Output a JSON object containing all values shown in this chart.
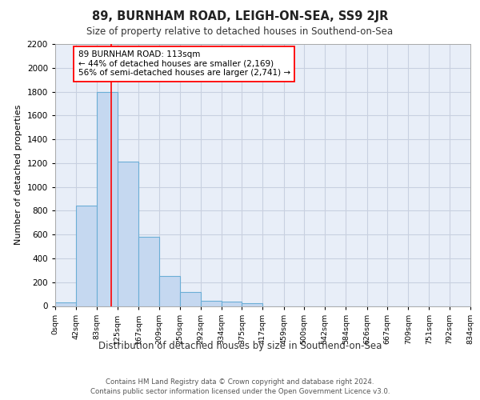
{
  "title": "89, BURNHAM ROAD, LEIGH-ON-SEA, SS9 2JR",
  "subtitle": "Size of property relative to detached houses in Southend-on-Sea",
  "xlabel": "Distribution of detached houses by size in Southend-on-Sea",
  "ylabel": "Number of detached properties",
  "footer_line1": "Contains HM Land Registry data © Crown copyright and database right 2024.",
  "footer_line2": "Contains public sector information licensed under the Open Government Licence v3.0.",
  "bar_edges": [
    0,
    42,
    83,
    125,
    167,
    209,
    250,
    292,
    334,
    375,
    417,
    459,
    500,
    542,
    584,
    626,
    667,
    709,
    751,
    792,
    834
  ],
  "bar_heights": [
    30,
    840,
    1800,
    1210,
    580,
    255,
    115,
    45,
    35,
    25,
    0,
    0,
    0,
    0,
    0,
    0,
    0,
    0,
    0,
    0
  ],
  "bar_color": "#c5d8f0",
  "bar_edgecolor": "#6baed6",
  "grid_color": "#c8d0e0",
  "bg_color": "#e8eef8",
  "redline_x": 113,
  "annotation_line1": "89 BURNHAM ROAD: 113sqm",
  "annotation_line2": "← 44% of detached houses are smaller (2,169)",
  "annotation_line3": "56% of semi-detached houses are larger (2,741) →",
  "ylim": [
    0,
    2200
  ],
  "yticks": [
    0,
    200,
    400,
    600,
    800,
    1000,
    1200,
    1400,
    1600,
    1800,
    2000,
    2200
  ],
  "tick_labels": [
    "0sqm",
    "42sqm",
    "83sqm",
    "125sqm",
    "167sqm",
    "209sqm",
    "250sqm",
    "292sqm",
    "334sqm",
    "375sqm",
    "417sqm",
    "459sqm",
    "500sqm",
    "542sqm",
    "584sqm",
    "626sqm",
    "667sqm",
    "709sqm",
    "751sqm",
    "792sqm",
    "834sqm"
  ]
}
